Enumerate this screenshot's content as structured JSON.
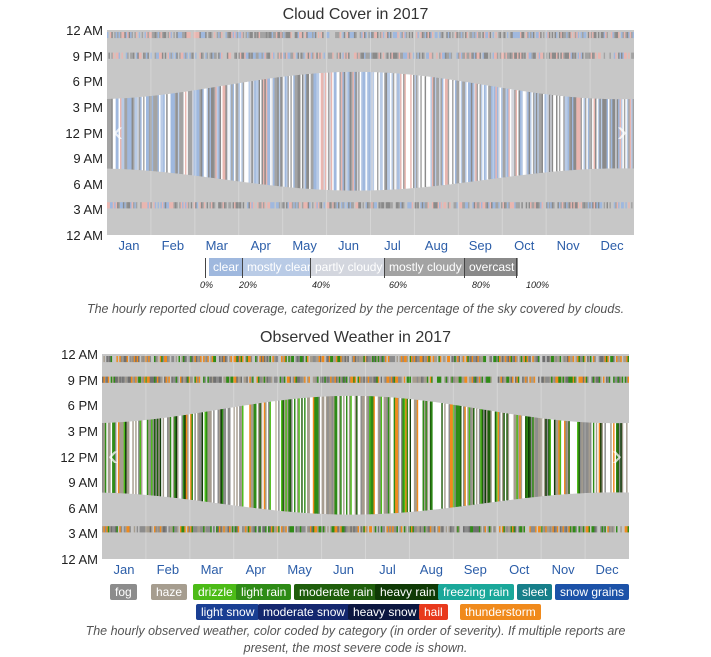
{
  "chart_data": [
    {
      "type": "heatmap",
      "title": "Cloud Cover in 2017",
      "y_ticks": [
        "12 AM",
        "9 PM",
        "6 PM",
        "3 PM",
        "12 PM",
        "9 AM",
        "6 AM",
        "3 AM",
        "12 AM"
      ],
      "x_ticks": [
        "Jan",
        "Feb",
        "Mar",
        "Apr",
        "May",
        "Jun",
        "Jul",
        "Aug",
        "Sep",
        "Oct",
        "Nov",
        "Dec"
      ],
      "legend": [
        {
          "label": "clear",
          "color": "#9fb8de"
        },
        {
          "label": "mostly clear",
          "color": "#b9cbe6"
        },
        {
          "label": "partly cloudy",
          "color": "#d3d6de"
        },
        {
          "label": "mostly cloudy",
          "color": "#a3a3a3"
        },
        {
          "label": "overcast",
          "color": "#8a8a8a"
        }
      ],
      "legend_percent_ticks": [
        "0%",
        "20%",
        "40%",
        "60%",
        "80%",
        "100%"
      ],
      "caption": "The hourly reported cloud coverage, categorized by the percentage of the sky covered by clouds."
    },
    {
      "type": "heatmap",
      "title": "Observed Weather in 2017",
      "y_ticks": [
        "12 AM",
        "9 PM",
        "6 PM",
        "3 PM",
        "12 PM",
        "9 AM",
        "6 AM",
        "3 AM",
        "12 AM"
      ],
      "x_ticks": [
        "Jan",
        "Feb",
        "Mar",
        "Apr",
        "May",
        "Jun",
        "Jul",
        "Aug",
        "Sep",
        "Oct",
        "Nov",
        "Dec"
      ],
      "legend_row1": [
        {
          "label": "fog",
          "color": "#8c8c8c"
        },
        {
          "label": "haze",
          "color": "#a69d8f"
        },
        {
          "label": "drizzle",
          "color": "#4cbb17"
        },
        {
          "label": "light rain",
          "color": "#2e8b16"
        },
        {
          "label": "moderate rain",
          "color": "#1f5e0c"
        },
        {
          "label": "heavy rain",
          "color": "#0f3a06"
        },
        {
          "label": "freezing rain",
          "color": "#1aa89a"
        },
        {
          "label": "sleet",
          "color": "#177f8a"
        },
        {
          "label": "snow grains",
          "color": "#1c52a8"
        }
      ],
      "legend_row2": [
        {
          "label": "light snow",
          "color": "#1a3f93"
        },
        {
          "label": "moderate snow",
          "color": "#14276e"
        },
        {
          "label": "heavy snow",
          "color": "#0c1740"
        },
        {
          "label": "hail",
          "color": "#e8391c"
        },
        {
          "label": "thunderstorm",
          "color": "#f08a1c"
        }
      ],
      "caption_line1": "The hourly observed weather, color coded by category (in order of severity). If multiple reports are",
      "caption_line2": "present, the most severe code is shown."
    }
  ]
}
